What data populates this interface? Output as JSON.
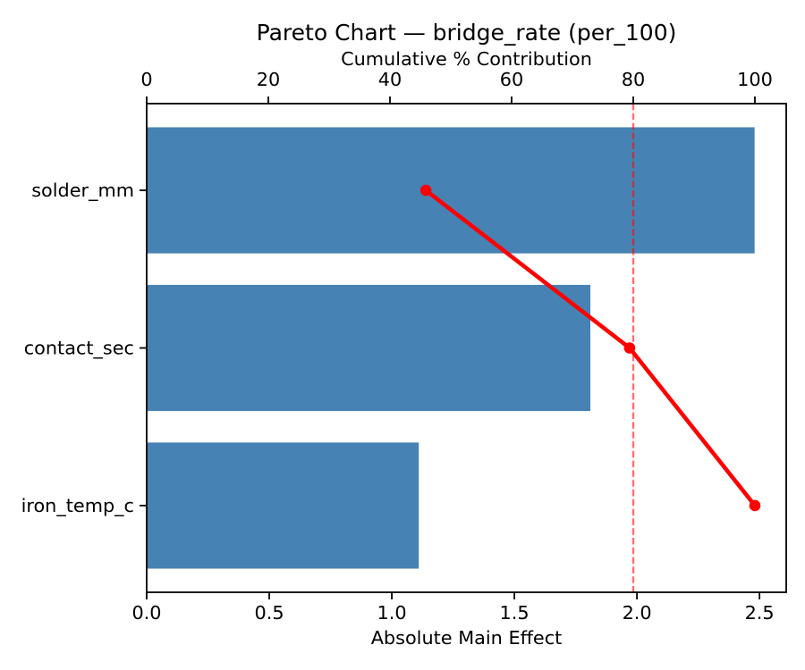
{
  "figure": {
    "background": "#ffffff"
  },
  "chart_data": {
    "type": "bar",
    "subtype": "pareto-horizontal-bars-with-cumulative-line",
    "title": "Pareto Chart — bridge_rate (per_100)",
    "categories": [
      "solder_mm",
      "contact_sec",
      "iron_temp_c"
    ],
    "series": [
      {
        "name": "Absolute Main Effect",
        "type": "barh",
        "values": [
          2.48,
          1.81,
          1.11
        ]
      },
      {
        "name": "Cumulative % Contribution",
        "type": "line",
        "values": [
          45.9,
          79.4,
          100.0
        ]
      }
    ],
    "bottom_axis": {
      "label": "Absolute Main Effect",
      "ticks": [
        0.0,
        0.5,
        1.0,
        1.5,
        2.0,
        2.5
      ],
      "tick_labels": [
        "0.0",
        "0.5",
        "1.0",
        "1.5",
        "2.0",
        "2.5"
      ],
      "range": [
        0,
        2.609
      ]
    },
    "top_axis": {
      "label": "Cumulative % Contribution",
      "ticks": [
        0,
        20,
        40,
        60,
        80,
        100
      ],
      "tick_labels": [
        "0",
        "20",
        "40",
        "60",
        "80",
        "100"
      ],
      "range": [
        0,
        105.15
      ]
    },
    "threshold_line": {
      "axis": "top",
      "value": 80,
      "style": "dashed"
    },
    "legend": "none",
    "grid": false,
    "colors": {
      "bar": "#4682b4",
      "line": "#ff0000",
      "marker": "#ff0000",
      "threshold": "#ff0000",
      "threshold_opacity": 0.55,
      "spine": "#000000",
      "text": "#000000"
    }
  }
}
